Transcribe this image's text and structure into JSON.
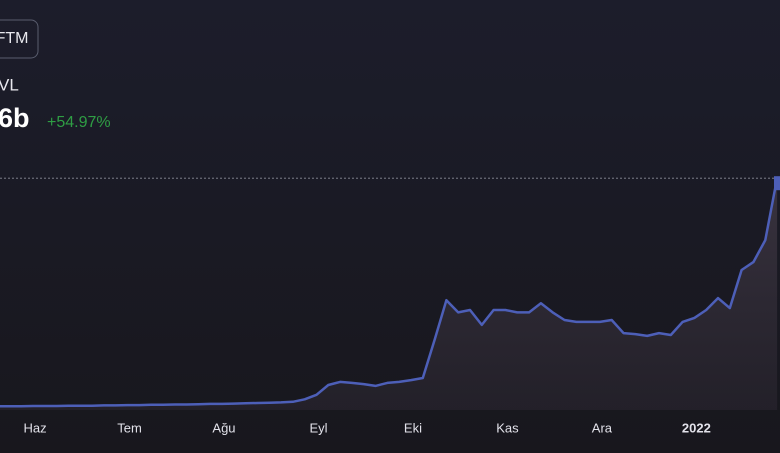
{
  "chart_data": {
    "type": "line",
    "token_button": "FTM",
    "metric_label": "VL",
    "headline_value": "6b",
    "change": "+54.97%",
    "change_color": "#2f9e44",
    "categories": [
      null,
      null,
      null,
      "Haz",
      null,
      null,
      null,
      null,
      null,
      null,
      null,
      "Tem",
      null,
      null,
      null,
      null,
      null,
      null,
      null,
      "Ağu",
      null,
      null,
      null,
      null,
      null,
      null,
      null,
      "Eyl",
      null,
      null,
      null,
      null,
      null,
      null,
      null,
      "Eki",
      null,
      null,
      null,
      null,
      null,
      null,
      null,
      "Kas",
      null,
      null,
      null,
      null,
      null,
      null,
      null,
      "Ara",
      null,
      null,
      null,
      null,
      null,
      null,
      null,
      "2022",
      null,
      null,
      null,
      null,
      null,
      null,
      null
    ],
    "series": [
      {
        "color": "#4d5fb8",
        "values": [
          0.12,
          0.12,
          0.12,
          0.13,
          0.13,
          0.13,
          0.14,
          0.14,
          0.14,
          0.15,
          0.15,
          0.16,
          0.16,
          0.17,
          0.17,
          0.18,
          0.18,
          0.19,
          0.2,
          0.2,
          0.21,
          0.22,
          0.23,
          0.24,
          0.25,
          0.27,
          0.35,
          0.5,
          0.82,
          0.92,
          0.89,
          0.85,
          0.79,
          0.89,
          0.92,
          0.98,
          1.05,
          2.3,
          3.6,
          3.2,
          3.28,
          2.79,
          3.28,
          3.28,
          3.2,
          3.2,
          3.5,
          3.2,
          2.95,
          2.89,
          2.89,
          2.89,
          2.95,
          2.52,
          2.49,
          2.43,
          2.52,
          2.46,
          2.89,
          3.02,
          3.28,
          3.67,
          3.34,
          4.59,
          4.85,
          5.57,
          7.6
        ]
      }
    ],
    "ylim": [
      0,
      8
    ]
  }
}
